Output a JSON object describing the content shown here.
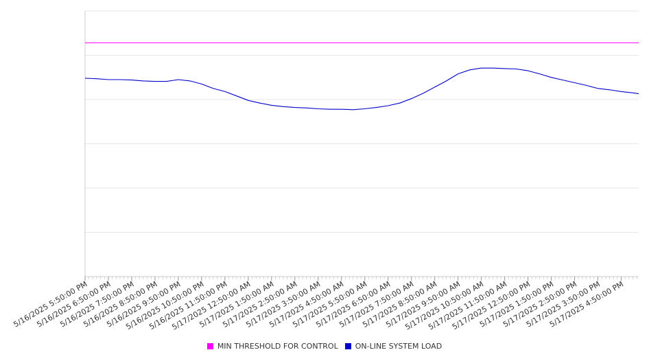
{
  "chart_data": {
    "type": "line",
    "title": "",
    "xlabel": "",
    "ylabel": "",
    "grid": true,
    "legend_position": "bottom",
    "x_tick_labels": [
      "5/16/2025 5:50:00 PM",
      "5/16/2025 6:50:00 PM",
      "5/16/2025 7:50:00 PM",
      "5/16/2025 8:50:00 PM",
      "5/16/2025 9:50:00 PM",
      "5/16/2025 10:50:00 PM",
      "5/16/2025 11:50:00 PM",
      "5/17/2025 12:50:00 AM",
      "5/17/2025 1:50:00 AM",
      "5/17/2025 2:50:00 AM",
      "5/17/2025 3:50:00 AM",
      "5/17/2025 4:50:00 AM",
      "5/17/2025 5:50:00 AM",
      "5/17/2025 6:50:00 AM",
      "5/17/2025 7:50:00 AM",
      "5/17/2025 8:50:00 AM",
      "5/17/2025 9:50:00 AM",
      "5/17/2025 10:50:00 AM",
      "5/17/2025 11:50:00 AM",
      "5/17/2025 12:50:00 PM",
      "5/17/2025 1:50:00 PM",
      "5/17/2025 2:50:00 PM",
      "5/17/2025 3:50:00 PM",
      "5/17/2025 4:50:00 PM"
    ],
    "ylim": [
      0,
      6
    ],
    "y_gridlines": [
      0,
      1,
      2,
      3,
      4,
      5,
      6
    ],
    "x_hours": [
      0,
      0.5,
      1,
      1.5,
      2,
      2.5,
      3,
      3.5,
      4,
      4.5,
      5,
      5.5,
      6,
      6.5,
      7,
      7.5,
      8,
      8.5,
      9,
      9.5,
      10,
      10.5,
      11,
      11.5,
      12,
      12.5,
      13,
      13.5,
      14,
      14.5,
      15,
      15.5,
      16,
      16.5,
      17,
      17.5,
      18,
      18.5,
      19,
      19.5,
      20,
      20.5,
      21,
      21.5,
      22,
      22.5,
      23,
      23.5,
      23.75
    ],
    "series": [
      {
        "name": "MIN THRESHOLD FOR CONTROL",
        "color": "#ff00ff",
        "values": [
          5.28,
          5.28,
          5.28,
          5.28,
          5.28,
          5.28,
          5.28,
          5.28,
          5.28,
          5.28,
          5.28,
          5.28,
          5.28,
          5.28,
          5.28,
          5.28,
          5.28,
          5.28,
          5.28,
          5.28,
          5.28,
          5.28,
          5.28,
          5.28,
          5.28,
          5.28,
          5.28,
          5.28,
          5.28,
          5.28,
          5.28,
          5.28,
          5.28,
          5.28,
          5.28,
          5.28,
          5.28,
          5.28,
          5.28,
          5.28,
          5.28,
          5.28,
          5.28,
          5.28,
          5.28,
          5.28,
          5.28,
          5.28,
          5.28
        ]
      },
      {
        "name": "ON-LINE SYSTEM LOAD",
        "color": "#0000cc",
        "values": [
          4.48,
          4.47,
          4.45,
          4.45,
          4.44,
          4.42,
          4.41,
          4.41,
          4.45,
          4.42,
          4.35,
          4.25,
          4.18,
          4.08,
          3.98,
          3.92,
          3.87,
          3.84,
          3.82,
          3.81,
          3.79,
          3.78,
          3.78,
          3.77,
          3.79,
          3.82,
          3.86,
          3.92,
          4.02,
          4.14,
          4.28,
          4.42,
          4.58,
          4.67,
          4.71,
          4.71,
          4.7,
          4.69,
          4.65,
          4.58,
          4.5,
          4.44,
          4.38,
          4.32,
          4.25,
          4.22,
          4.18,
          4.15,
          4.13
        ]
      }
    ]
  }
}
